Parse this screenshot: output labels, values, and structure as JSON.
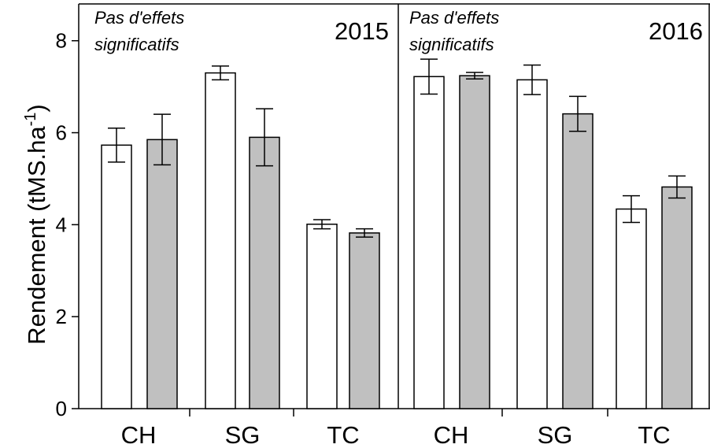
{
  "chart_data": {
    "type": "bar",
    "ylabel": {
      "main": "Rendement (tMS.ha",
      "sup": "-1",
      "close": ")"
    },
    "ylim": [
      0,
      8.8
    ],
    "yticks": [
      "0",
      "2",
      "4",
      "6",
      "8"
    ],
    "colors": {
      "white_bar": "#ffffff",
      "grey_bar": "#c0c0c0",
      "stroke": "#000000"
    },
    "panels": [
      {
        "year": "2015",
        "note_line1": "Pas d'effets",
        "note_line2": "significatifs",
        "categories": [
          "CH",
          "SG",
          "TC"
        ],
        "series": [
          {
            "color": "white",
            "values": [
              5.73,
              7.3,
              4.01
            ],
            "errors": [
              0.37,
              0.15,
              0.1
            ]
          },
          {
            "color": "grey",
            "values": [
              5.85,
              5.9,
              3.82
            ],
            "errors": [
              0.55,
              0.62,
              0.09
            ]
          }
        ]
      },
      {
        "year": "2016",
        "note_line1": "Pas d'effets",
        "note_line2": "significatifs",
        "categories": [
          "CH",
          "SG",
          "TC"
        ],
        "series": [
          {
            "color": "white",
            "values": [
              7.22,
              7.15,
              4.34
            ],
            "errors": [
              0.38,
              0.32,
              0.29
            ]
          },
          {
            "color": "grey",
            "values": [
              7.24,
              6.41,
              4.82
            ],
            "errors": [
              0.07,
              0.38,
              0.24
            ]
          }
        ]
      }
    ]
  }
}
